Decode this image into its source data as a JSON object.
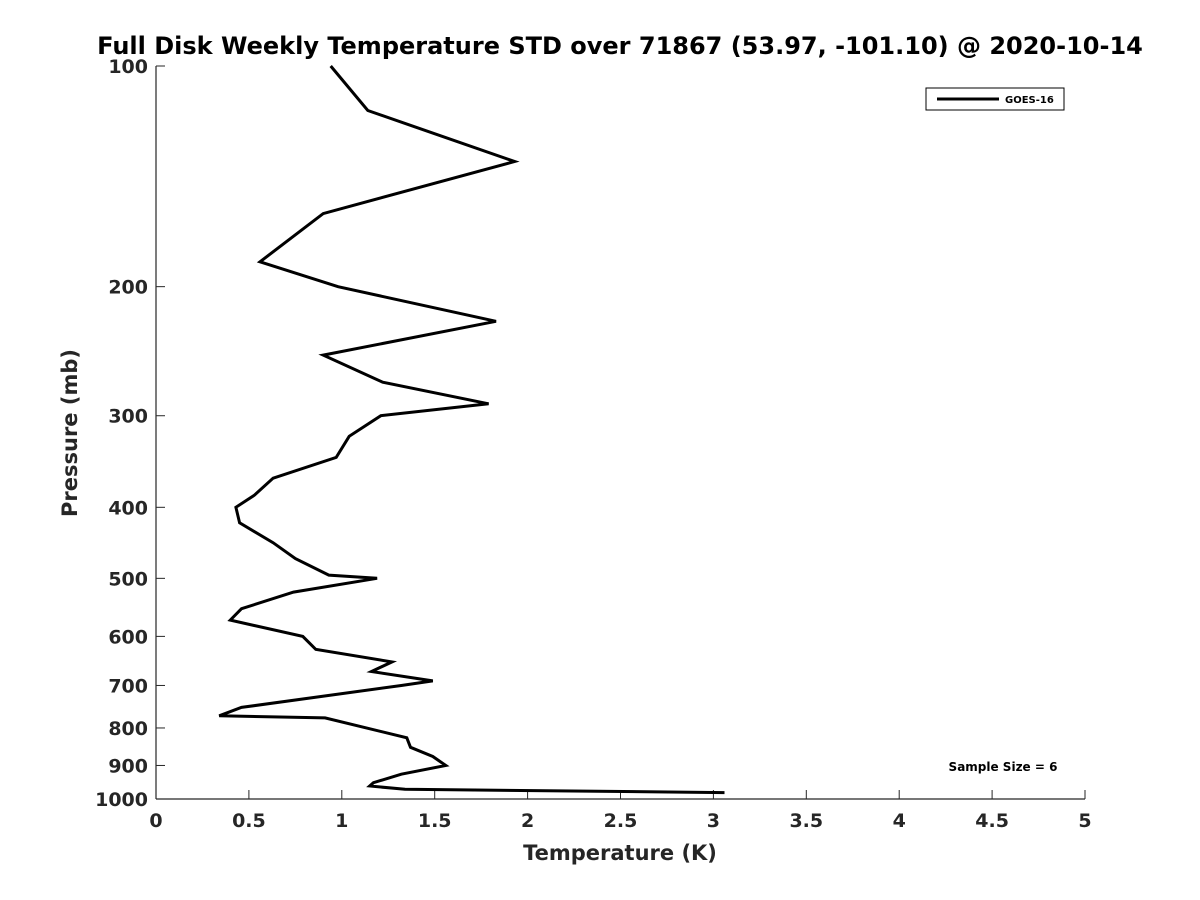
{
  "chart_data": {
    "type": "line",
    "title": "Full Disk Weekly Temperature STD over 71867 (53.97, -101.10) @ 2020-10-14",
    "xlabel": "Temperature (K)",
    "ylabel": "Pressure (mb)",
    "xlim": [
      0,
      5
    ],
    "ylim": [
      100,
      1000
    ],
    "y_scale": "log",
    "y_reversed": true,
    "x_ticks": [
      "0",
      "0.5",
      "1",
      "1.5",
      "2",
      "2.5",
      "3",
      "3.5",
      "4",
      "4.5",
      "5"
    ],
    "y_ticks": [
      "100",
      "200",
      "300",
      "400",
      "500",
      "600",
      "700",
      "800",
      "900",
      "1000"
    ],
    "grid": false,
    "legend_position": "top-right",
    "annotation": "Sample Size = 6",
    "series": [
      {
        "name": "GOES-16",
        "color": "#000000",
        "points": [
          [
            0.94,
            100
          ],
          [
            1.14,
            115
          ],
          [
            1.93,
            135
          ],
          [
            0.9,
            159
          ],
          [
            0.56,
            185
          ],
          [
            0.98,
            200
          ],
          [
            1.83,
            223
          ],
          [
            0.9,
            248
          ],
          [
            1.22,
            270
          ],
          [
            1.79,
            289
          ],
          [
            1.21,
            300
          ],
          [
            1.04,
            320
          ],
          [
            0.97,
            342
          ],
          [
            0.63,
            365
          ],
          [
            0.53,
            385
          ],
          [
            0.43,
            400
          ],
          [
            0.45,
            420
          ],
          [
            0.63,
            447
          ],
          [
            0.75,
            470
          ],
          [
            0.93,
            495
          ],
          [
            1.19,
            500
          ],
          [
            0.74,
            522
          ],
          [
            0.46,
            550
          ],
          [
            0.4,
            570
          ],
          [
            0.79,
            600
          ],
          [
            0.86,
            625
          ],
          [
            1.27,
            650
          ],
          [
            1.16,
            670
          ],
          [
            1.49,
            690
          ],
          [
            1.32,
            700
          ],
          [
            0.46,
            750
          ],
          [
            0.34,
            770
          ],
          [
            0.91,
            775
          ],
          [
            1.35,
            825
          ],
          [
            1.37,
            850
          ],
          [
            1.49,
            875
          ],
          [
            1.56,
            900
          ],
          [
            1.32,
            925
          ],
          [
            1.17,
            950
          ],
          [
            1.15,
            960
          ],
          [
            1.34,
            970
          ],
          [
            3.06,
            980
          ]
        ]
      }
    ]
  }
}
